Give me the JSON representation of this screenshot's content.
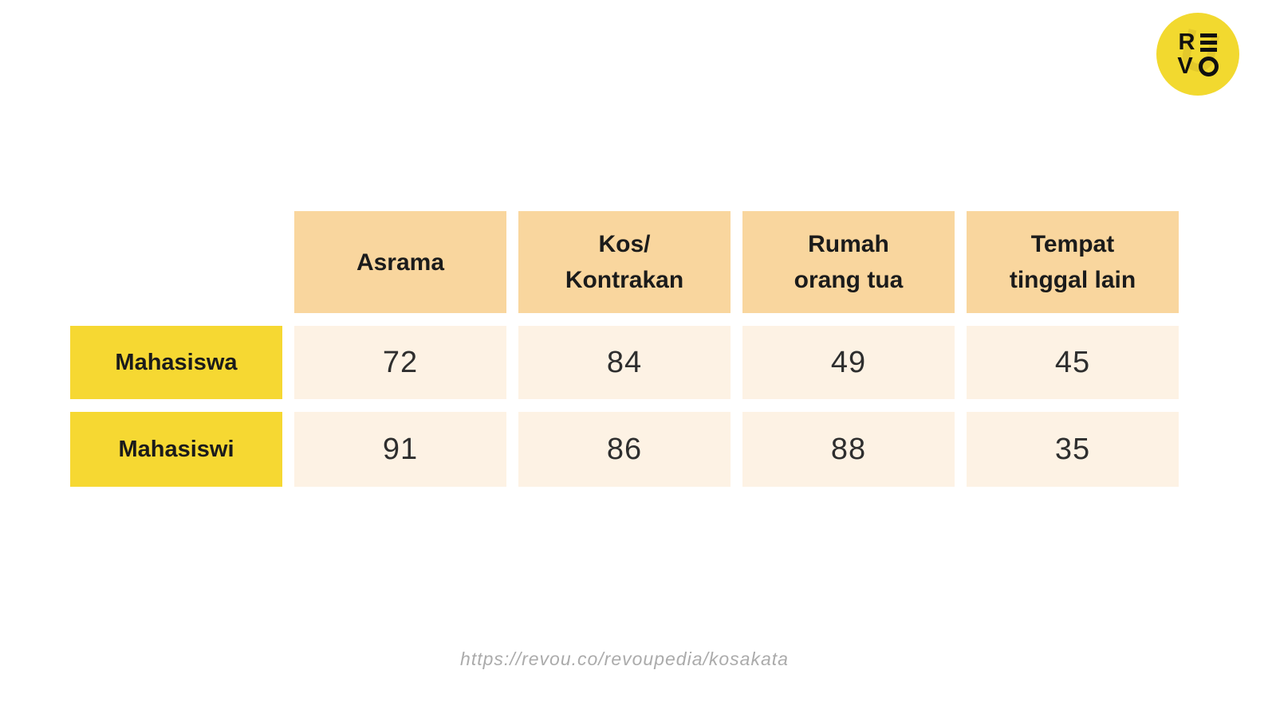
{
  "logo": {
    "brand": "RevoU",
    "letter_r": "R",
    "letter_v": "V",
    "circle_color": "#F2D92F",
    "letter_color": "#101010"
  },
  "table": {
    "column_headers": [
      "Asrama",
      "Kos/\nKontrakan",
      "Rumah\norang tua",
      "Tempat\ntinggal lain"
    ],
    "rows": [
      {
        "label": "Mahasiswa",
        "values": [
          72,
          84,
          49,
          45
        ]
      },
      {
        "label": "Mahasiswi",
        "values": [
          91,
          86,
          88,
          35
        ]
      }
    ],
    "colors": {
      "column_header_bg": "#F9D69E",
      "row_label_bg": "#F6D832",
      "value_cell_bg": "#FDF2E4",
      "text": "#1b1b1b"
    }
  },
  "footer": {
    "url": "https://revou.co/revoupedia/kosakata"
  },
  "chart_data": {
    "type": "table",
    "columns": [
      "Asrama",
      "Kos/Kontrakan",
      "Rumah orang tua",
      "Tempat tinggal lain"
    ],
    "row_labels": [
      "Mahasiswa",
      "Mahasiswi"
    ],
    "values": [
      [
        72,
        84,
        49,
        45
      ],
      [
        91,
        86,
        88,
        35
      ]
    ],
    "title": "",
    "caption": "https://revou.co/revoupedia/kosakata",
    "legend_position": "none",
    "grid": false
  }
}
